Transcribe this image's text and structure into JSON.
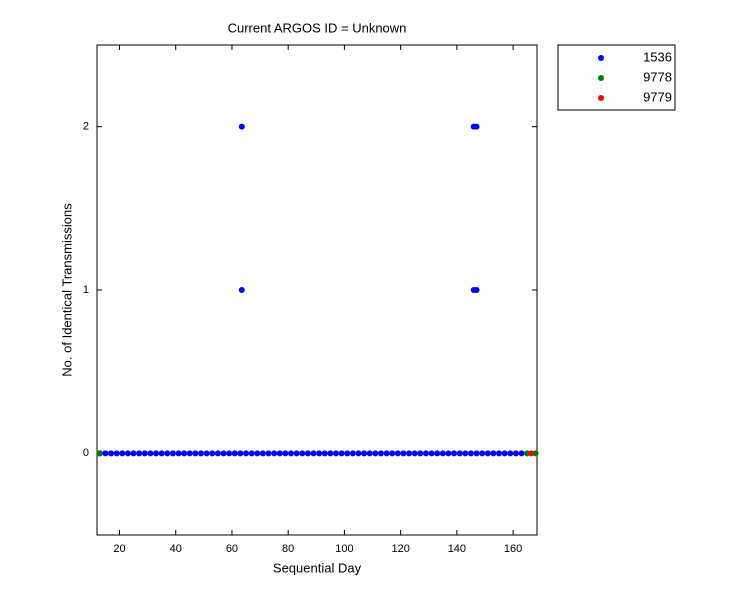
{
  "chart_data": {
    "type": "scatter",
    "title": "Current ARGOS ID = Unknown",
    "x_label": "Sequential Day",
    "y_label": "No. of Identical Transmissions",
    "xlim": [
      12,
      168.5
    ],
    "ylim": [
      -0.5,
      2.5
    ],
    "xticks": [
      20,
      40,
      60,
      80,
      100,
      120,
      140,
      160
    ],
    "yticks": [
      0,
      1,
      2
    ],
    "legend": "outside-top-right",
    "series": [
      {
        "name": "1536",
        "color": "#0000ff",
        "x": [
          13,
          15,
          17,
          19,
          21,
          23,
          25,
          27,
          29,
          31,
          33,
          35,
          37,
          39,
          41,
          43,
          45,
          47,
          49,
          51,
          53,
          55,
          57,
          59,
          61,
          63,
          65,
          67,
          69,
          71,
          73,
          75,
          77,
          79,
          81,
          83,
          85,
          87,
          89,
          91,
          93,
          95,
          97,
          99,
          101,
          103,
          105,
          107,
          109,
          111,
          113,
          115,
          117,
          119,
          121,
          123,
          125,
          127,
          129,
          131,
          133,
          135,
          137,
          139,
          141,
          143,
          145,
          147,
          149,
          151,
          153,
          155,
          157,
          159,
          161,
          163,
          63.5,
          63.5,
          146,
          147,
          146,
          147
        ],
        "values": [
          0,
          0,
          0,
          0,
          0,
          0,
          0,
          0,
          0,
          0,
          0,
          0,
          0,
          0,
          0,
          0,
          0,
          0,
          0,
          0,
          0,
          0,
          0,
          0,
          0,
          0,
          0,
          0,
          0,
          0,
          0,
          0,
          0,
          0,
          0,
          0,
          0,
          0,
          0,
          0,
          0,
          0,
          0,
          0,
          0,
          0,
          0,
          0,
          0,
          0,
          0,
          0,
          0,
          0,
          0,
          0,
          0,
          0,
          0,
          0,
          0,
          0,
          0,
          0,
          0,
          0,
          0,
          0,
          0,
          0,
          0,
          0,
          0,
          0,
          0,
          0,
          1,
          2,
          1,
          1,
          2,
          2
        ]
      },
      {
        "name": "9778",
        "color": "#008000",
        "x": [
          12.8,
          165,
          168
        ],
        "values": [
          0,
          0,
          0
        ]
      },
      {
        "name": "9779",
        "color": "#ff0000",
        "x": [
          166.5
        ],
        "values": [
          0
        ]
      }
    ]
  }
}
